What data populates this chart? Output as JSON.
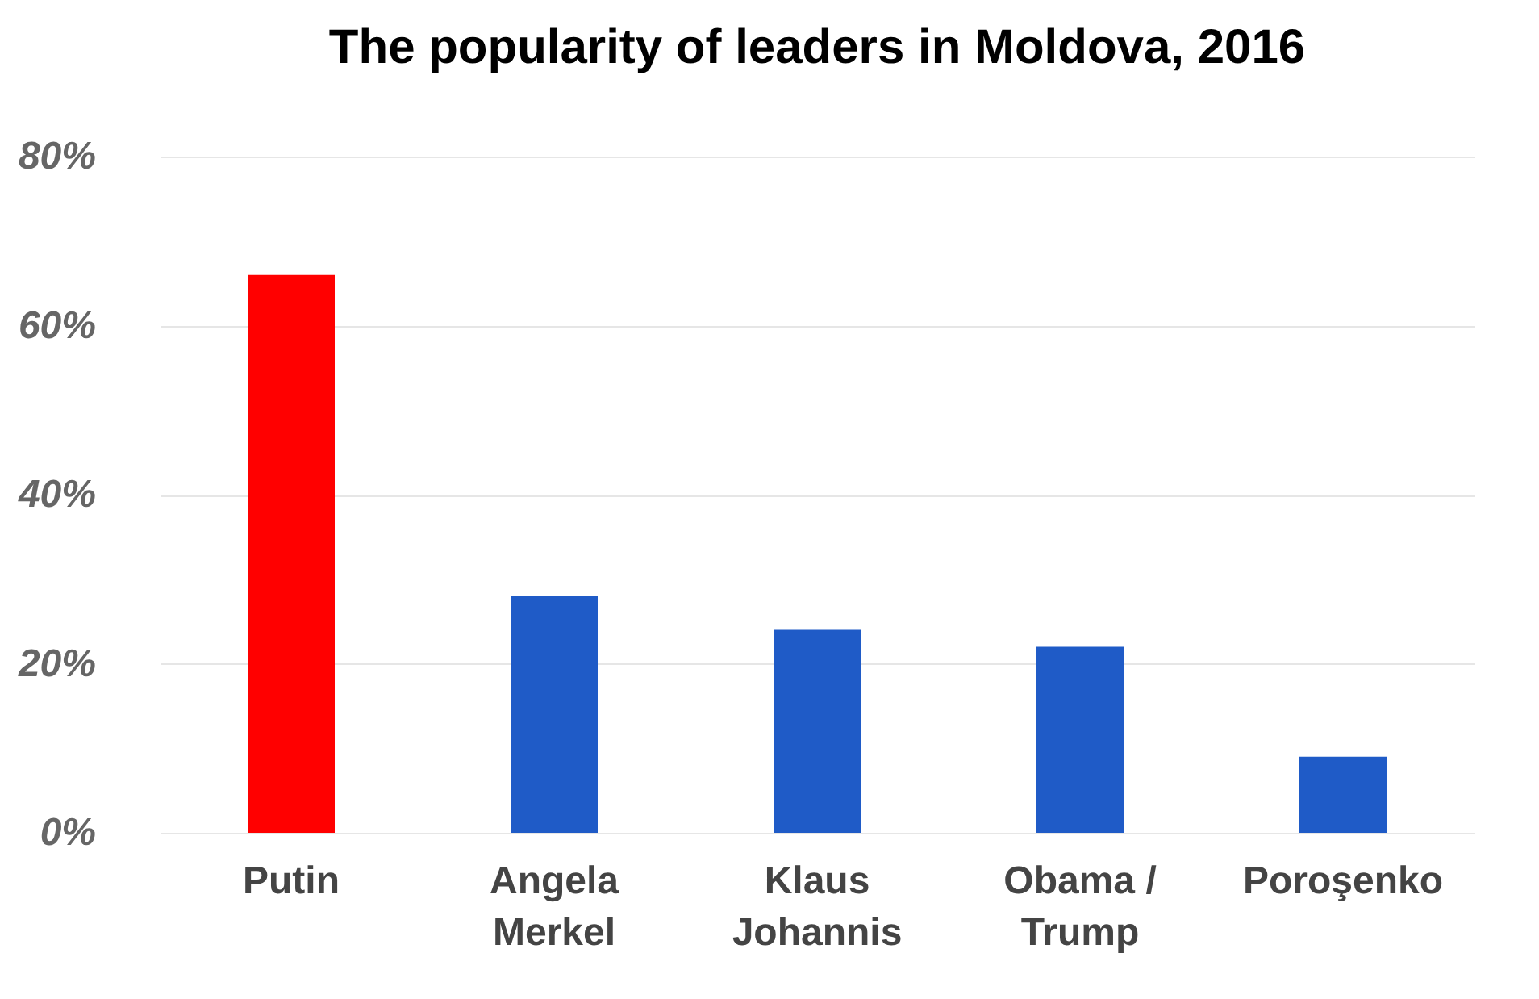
{
  "chart_data": {
    "type": "bar",
    "title": "The popularity of leaders in Moldova, 2016",
    "categories": [
      "Putin",
      "Angela\nMerkel",
      "Klaus\nJohannis",
      "Obama /\nTrump",
      "Poroşenko"
    ],
    "values": [
      66,
      28,
      24,
      22,
      9
    ],
    "colors": [
      "#ff0000",
      "#1f5bc7",
      "#1f5bc7",
      "#1f5bc7",
      "#1f5bc7"
    ],
    "ylim": [
      0,
      80
    ],
    "yticks": [
      {
        "value": 0,
        "label": "0%"
      },
      {
        "value": 20,
        "label": "20%"
      },
      {
        "value": 40,
        "label": "40%"
      },
      {
        "value": 60,
        "label": "60%"
      },
      {
        "value": 80,
        "label": "80%"
      }
    ],
    "grid": "y"
  }
}
